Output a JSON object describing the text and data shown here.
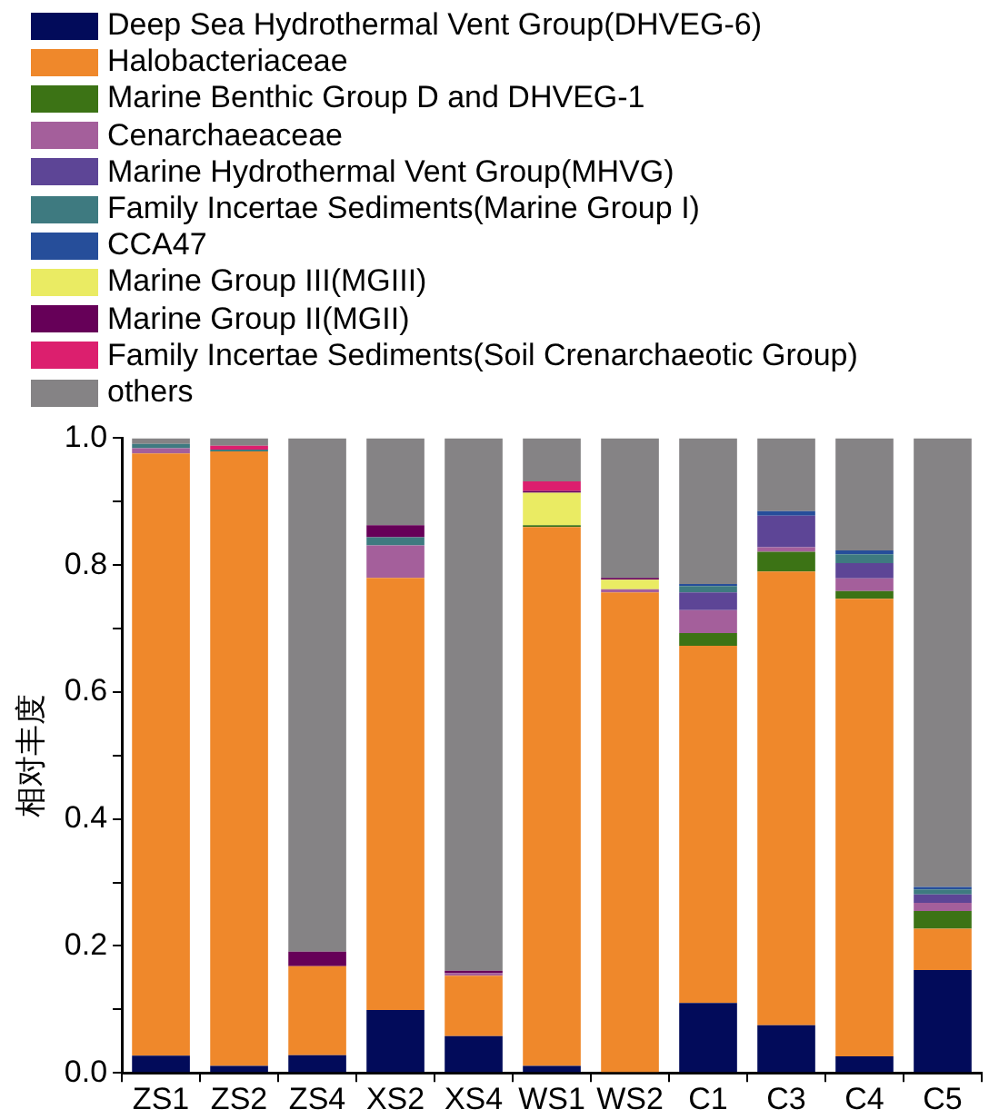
{
  "chart_data": {
    "type": "bar",
    "stacked": true,
    "ylabel": "相对丰度",
    "legend": "top",
    "grid": false,
    "categories": [
      "ZS1",
      "ZS2",
      "ZS4",
      "XS2",
      "XS4",
      "WS1",
      "WS2",
      "C1",
      "C3",
      "C4",
      "C5"
    ],
    "ylim": [
      0,
      1
    ],
    "yticks": [
      {
        "value": 0,
        "label": "0.0"
      },
      {
        "value": 0.1,
        "label": null
      },
      {
        "value": 0.2,
        "label": "0.2"
      },
      {
        "value": 0.3,
        "label": null
      },
      {
        "value": 0.4,
        "label": "0.4"
      },
      {
        "value": 0.5,
        "label": null
      },
      {
        "value": 0.6,
        "label": "0.6"
      },
      {
        "value": 0.7,
        "label": null
      },
      {
        "value": 0.8,
        "label": "0.8"
      },
      {
        "value": 0.9,
        "label": null
      },
      {
        "value": 1,
        "label": "1.0"
      }
    ],
    "series": [
      {
        "name": "Deep Sea Hydrothermal Vent Group(DHVEG-6)",
        "color": "#020b5a",
        "values": [
          0.027,
          0.011,
          0.028,
          0.099,
          0.058,
          0.011,
          0,
          0.11,
          0.075,
          0.026,
          0.162
        ]
      },
      {
        "name": "Halobacteriaceae",
        "color": "#ef882b",
        "values": [
          0.949,
          0.968,
          0.14,
          0.681,
          0.095,
          0.849,
          0.757,
          0.563,
          0.715,
          0.721,
          0.065
        ]
      },
      {
        "name": "Marine Benthic Group D and DHVEG-1",
        "color": "#3c7315",
        "values": [
          0,
          0,
          0,
          0,
          0,
          0.003,
          0,
          0.02,
          0.031,
          0.012,
          0.028
        ]
      },
      {
        "name": "Cenarchaeaceae",
        "color": "#a45f9b",
        "values": [
          0.008,
          0,
          0,
          0.051,
          0.004,
          0,
          0.005,
          0.036,
          0.007,
          0.02,
          0.013
        ]
      },
      {
        "name": "Marine Hydrothermal Vent Group(MHVG)",
        "color": "#5d4596",
        "values": [
          0,
          0,
          0,
          0,
          0,
          0,
          0,
          0.028,
          0.05,
          0.024,
          0.013
        ]
      },
      {
        "name": "Family Incertae Sediments(Marine Group I)",
        "color": "#3e7a80",
        "values": [
          0.007,
          0.003,
          0,
          0.013,
          0,
          0,
          0,
          0.01,
          0,
          0.014,
          0.008
        ]
      },
      {
        "name": "CCA47",
        "color": "#264e9a",
        "values": [
          0,
          0,
          0,
          0,
          0,
          0,
          0,
          0.003,
          0.007,
          0.006,
          0.004
        ]
      },
      {
        "name": "Marine Group III(MGIII)",
        "color": "#eaeb63",
        "values": [
          0,
          0,
          0,
          0,
          0,
          0.051,
          0.015,
          0,
          0,
          0,
          0
        ]
      },
      {
        "name": "Marine Group II(MGII)",
        "color": "#660058",
        "values": [
          0,
          0,
          0.023,
          0.019,
          0.004,
          0.003,
          0.003,
          0,
          0,
          0,
          0
        ]
      },
      {
        "name": "Family Incertae Sediments(Soil Crenarchaeotic Group)",
        "color": "#dc1f6e",
        "values": [
          0,
          0.006,
          0,
          0,
          0,
          0.015,
          0,
          0,
          0,
          0,
          0
        ]
      },
      {
        "name": "others",
        "color": "#858385",
        "values": [
          0.009,
          0.012,
          0.809,
          0.137,
          0.839,
          0.068,
          0.22,
          0.23,
          0.115,
          0.177,
          0.707
        ]
      }
    ]
  }
}
